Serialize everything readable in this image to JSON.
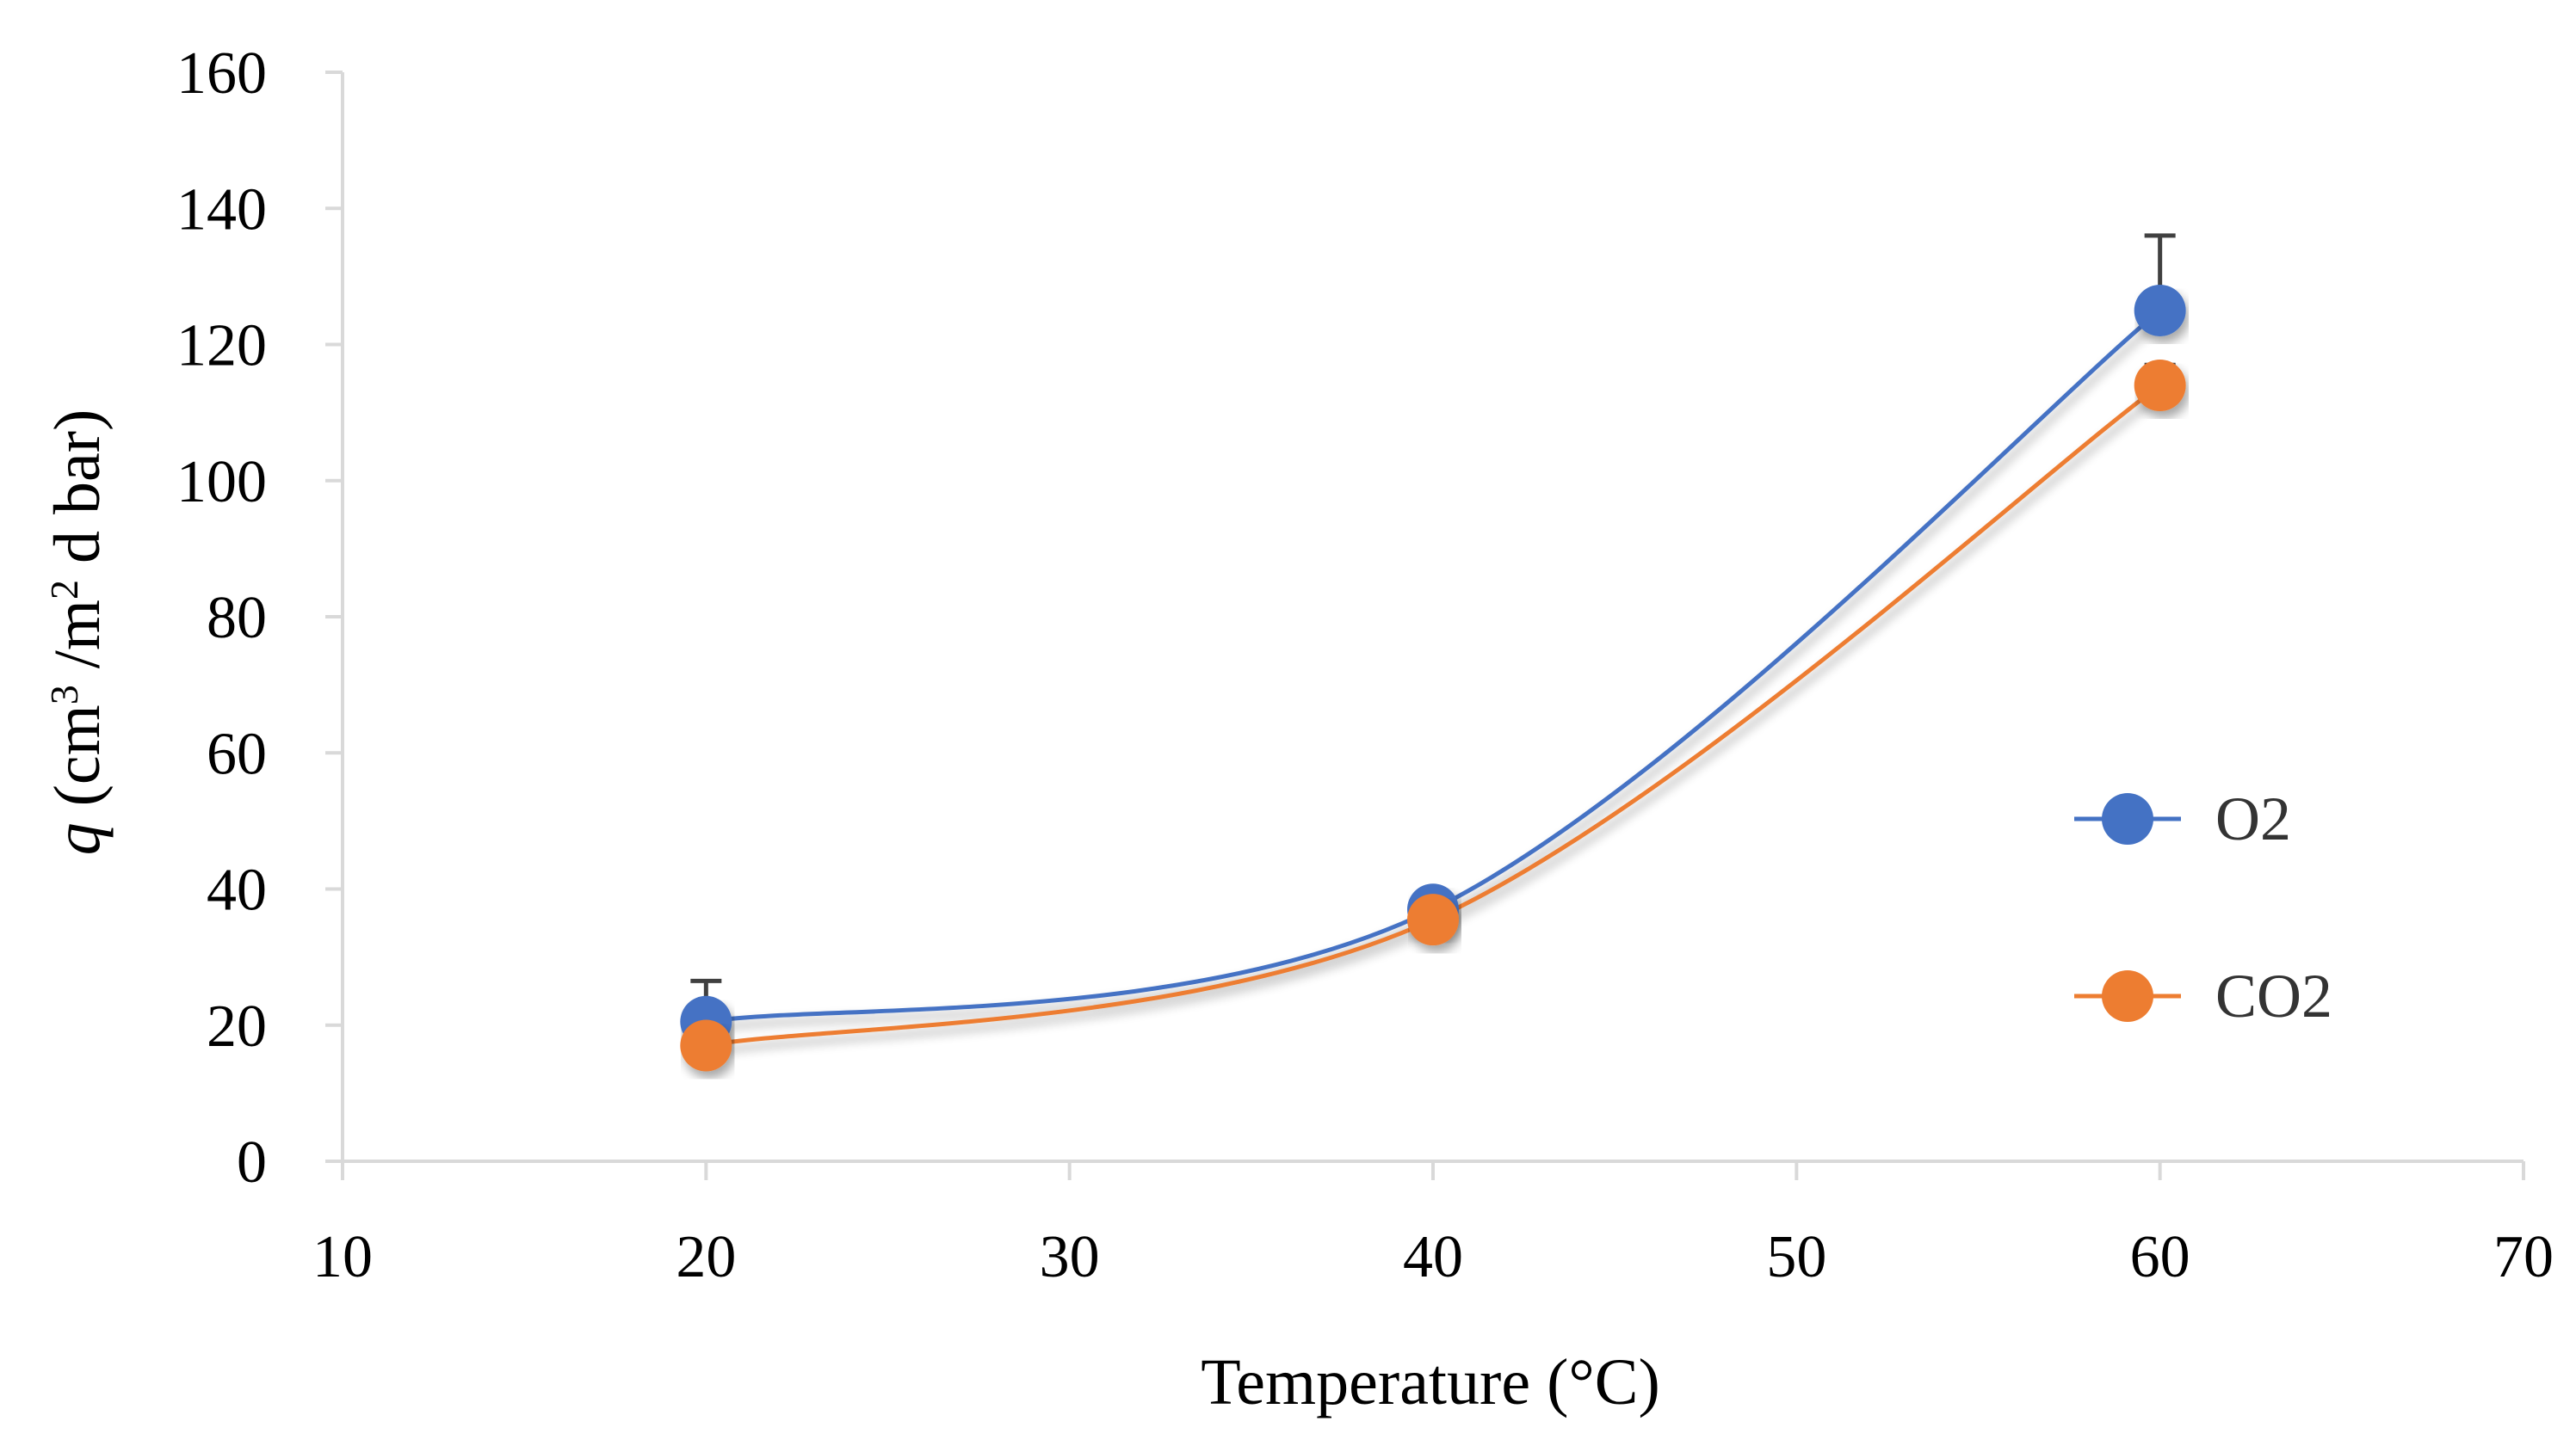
{
  "chart_data": {
    "type": "line",
    "title": "",
    "xlabel": "Temperature (°C)",
    "ylabel_parts": {
      "q": "q",
      "pre": " (cm",
      "sup1": "3",
      "mid": " /m",
      "sup2": "2",
      "post": " d bar)"
    },
    "xlim": [
      10,
      70
    ],
    "ylim": [
      0,
      160
    ],
    "x_ticks": [
      10,
      20,
      30,
      40,
      50,
      60,
      70
    ],
    "y_ticks": [
      0,
      20,
      40,
      60,
      80,
      100,
      120,
      140,
      160
    ],
    "legend_position": "right",
    "smoothed": true,
    "series": [
      {
        "name": "O2",
        "color": "#4472C4",
        "x": [
          20,
          40,
          60
        ],
        "y": [
          20.5,
          37,
          125
        ],
        "error_upper": [
          6,
          2,
          11
        ]
      },
      {
        "name": "CO2",
        "color": "#ED7D31",
        "x": [
          20,
          40,
          60
        ],
        "y": [
          17,
          35.5,
          114
        ],
        "error_upper": [
          0,
          0,
          3
        ]
      }
    ],
    "gridlines": false
  }
}
